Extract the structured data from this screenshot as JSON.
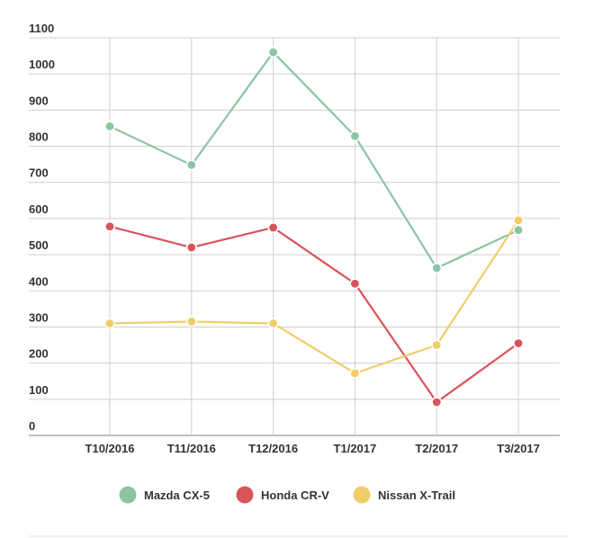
{
  "chart_data": {
    "type": "line",
    "title": "",
    "xlabel": "",
    "ylabel": "",
    "categories": [
      "T10/2016",
      "T11/2016",
      "T12/2016",
      "T1/2017",
      "T2/2017",
      "T3/2017"
    ],
    "y_ticks": [
      "0",
      "100",
      "200",
      "300",
      "400",
      "500",
      "600",
      "700",
      "800",
      "900",
      "1000",
      "1100"
    ],
    "ylim": [
      0,
      1100
    ],
    "grid": true,
    "legend_position": "bottom",
    "series": [
      {
        "name": "Mazda CX-5",
        "color": "#8cc4a4",
        "values": [
          855,
          748,
          1060,
          828,
          463,
          568
        ]
      },
      {
        "name": "Honda CR-V",
        "color": "#d9545a",
        "values": [
          578,
          520,
          575,
          420,
          92,
          255
        ]
      },
      {
        "name": "Nissan X-Trail",
        "color": "#f1cd6a",
        "values": [
          310,
          315,
          310,
          172,
          250,
          595
        ]
      }
    ]
  }
}
